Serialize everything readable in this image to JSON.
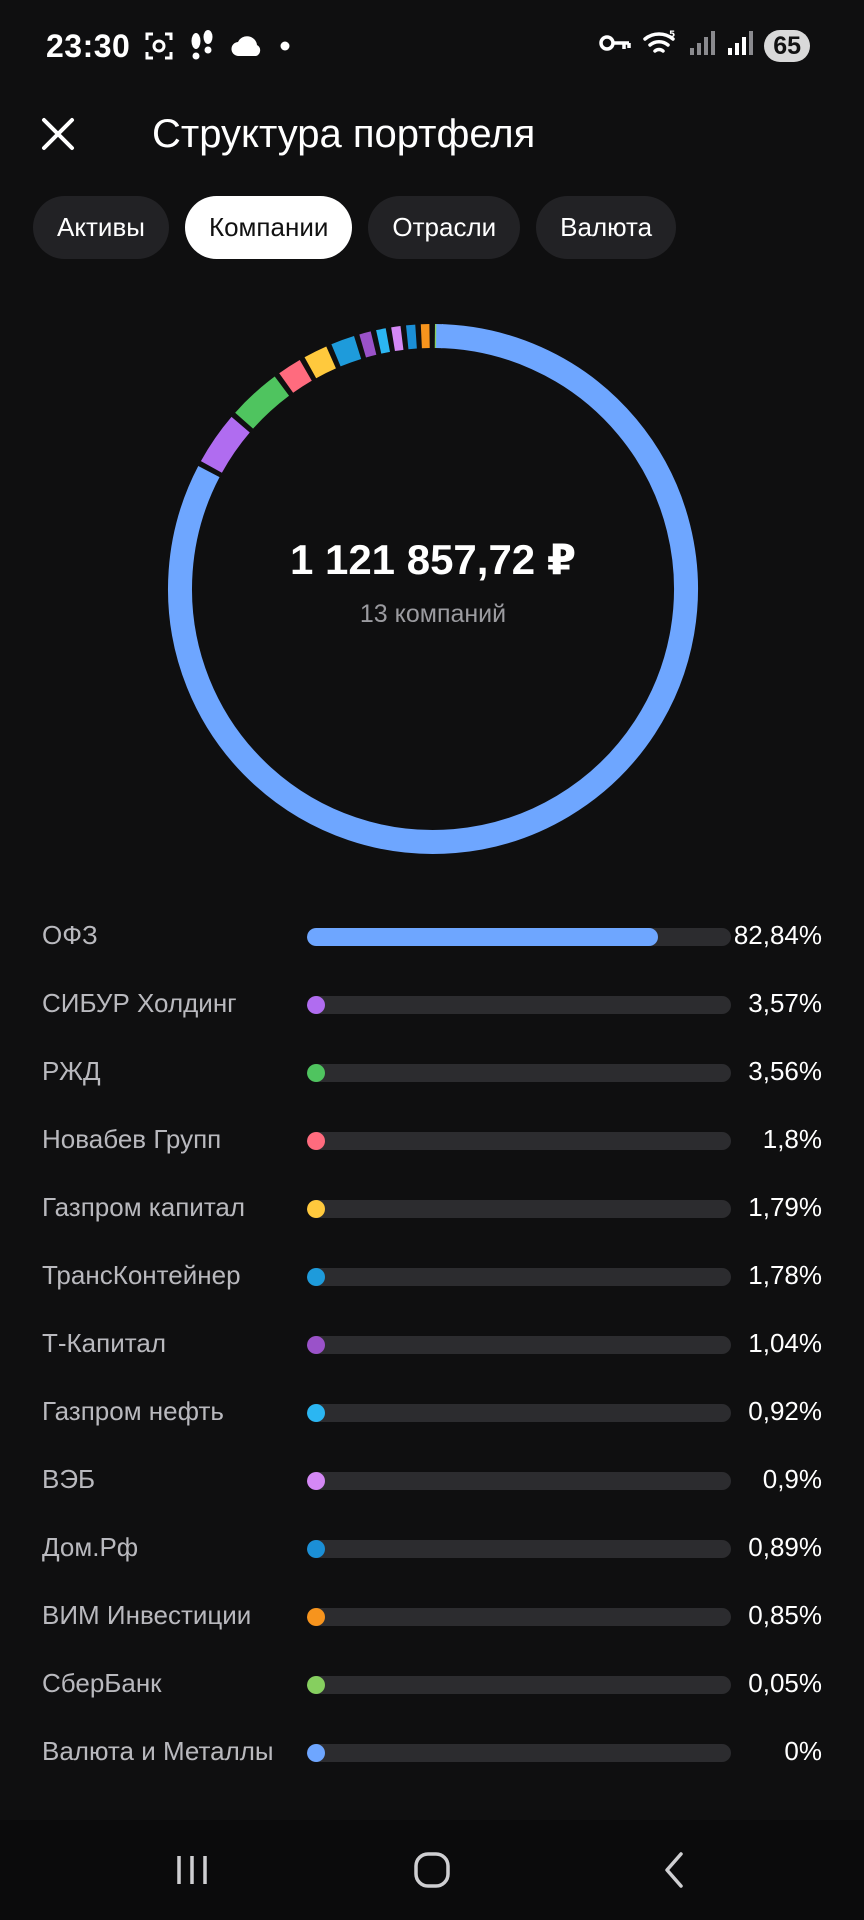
{
  "status_bar": {
    "time": "23:30",
    "left_icons": [
      "screenshot-icon",
      "steps-icon",
      "cloud-icon",
      "dot-icon"
    ],
    "right_icons": [
      "key-icon",
      "wifi-icon",
      "signal-icon",
      "signal-icon"
    ],
    "battery": "65"
  },
  "header": {
    "title": "Структура портфеля",
    "close_icon": "close-icon"
  },
  "tabs": [
    {
      "label": "Активы",
      "active": false
    },
    {
      "label": "Компании",
      "active": true
    },
    {
      "label": "Отрасли",
      "active": false
    },
    {
      "label": "Валюта",
      "active": false
    }
  ],
  "summary": {
    "total": "1 121 857,72 ₽",
    "count": "13 компаний"
  },
  "chart_data": {
    "type": "donut",
    "categories": [
      "ОФЗ",
      "СИБУР Холдинг",
      "РЖД",
      "Новабев Групп",
      "Газпром капитал",
      "ТрансКонтейнер",
      "Т-Капитал",
      "Газпром нефть",
      "ВЭБ",
      "Дом.Рф",
      "ВИМ Инвестиции",
      "СберБанк",
      "Валюта и Металлы"
    ],
    "values": [
      82.84,
      3.57,
      3.56,
      1.8,
      1.79,
      1.78,
      1.04,
      0.92,
      0.9,
      0.89,
      0.85,
      0.05,
      0
    ],
    "value_labels": [
      "82,84%",
      "3,57%",
      "3,56%",
      "1,8%",
      "1,79%",
      "1,78%",
      "1,04%",
      "0,92%",
      "0,9%",
      "0,89%",
      "0,85%",
      "0,05%",
      "0%"
    ],
    "colors": [
      "#6ea6ff",
      "#b06cf0",
      "#4fc45f",
      "#ff6b7e",
      "#ffc93d",
      "#1e9bdb",
      "#9a52c9",
      "#2bb6f2",
      "#d488f5",
      "#1b8fd6",
      "#f7941d",
      "#86cf5f",
      "#6ea6ff"
    ]
  },
  "nav_bar": {
    "buttons": [
      "recents-icon",
      "home-icon",
      "back-icon"
    ]
  }
}
